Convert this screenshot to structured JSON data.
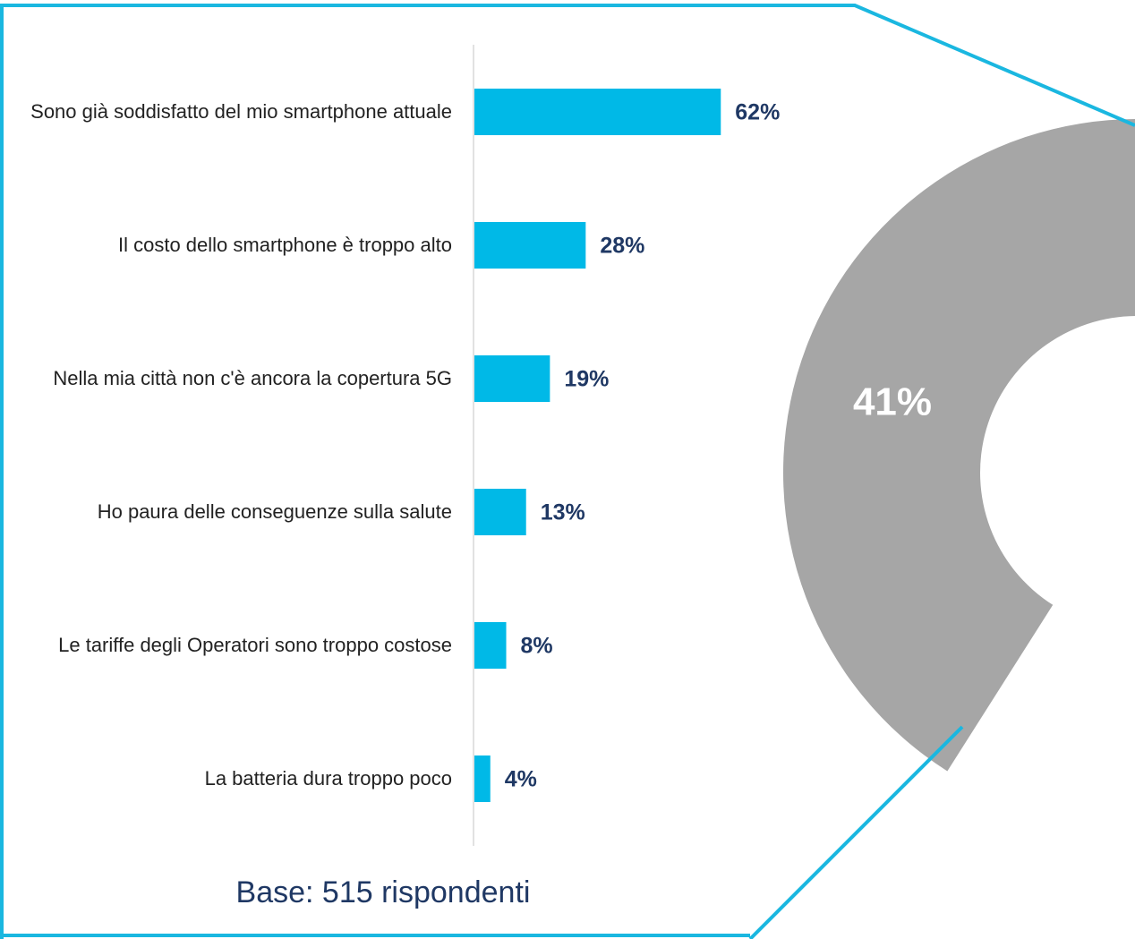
{
  "chart_data": [
    {
      "type": "bar",
      "categories": [
        "Sono già soddisfatto del mio smartphone attuale",
        "Il costo dello smartphone è troppo alto",
        "Nella mia città non c'è ancora la copertura 5G",
        "Ho paura delle conseguenze sulla salute",
        "Le tariffe degli Operatori sono troppo costose",
        "La batteria dura troppo poco"
      ],
      "values": [
        62,
        28,
        19,
        13,
        8,
        4
      ],
      "value_labels": [
        "62%",
        "28%",
        "19%",
        "13%",
        "8%",
        "4%"
      ],
      "color": "#00b9e7",
      "note": "Base: 515 rispondenti"
    },
    {
      "type": "pie",
      "values": [
        41
      ],
      "value_labels": [
        "41%"
      ],
      "color": "#a6a6a6"
    }
  ]
}
